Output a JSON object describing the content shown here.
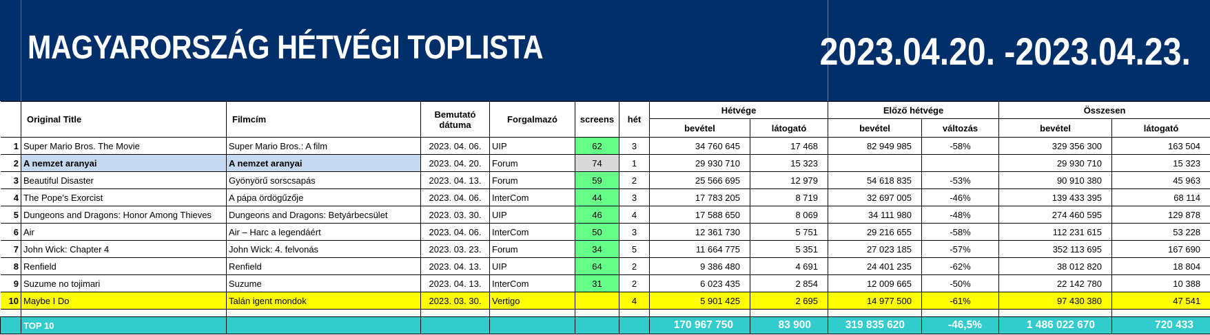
{
  "header": {
    "title": "MAGYARORSZÁG HÉTVÉGI TOPLISTA",
    "date_range": "2023.04.20. -2023.04.23."
  },
  "columns": {
    "original_title": "Original Title",
    "filmcim": "Filmcím",
    "bemutato_line1": "Bemutató",
    "bemutato_line2": "dátuma",
    "forgalmazo": "Forgalmazó",
    "screens": "screens",
    "het": "hét",
    "group_hetvege": "Hétvége",
    "group_elozo": "Előző hétvége",
    "group_osszesen": "Összesen",
    "bevetel": "bevétel",
    "latogato": "látogató",
    "valtozas": "változás"
  },
  "rows": [
    {
      "rank": "1",
      "original": "Super Mario Bros. The Movie",
      "hu": "Super Mario Bros.: A film",
      "date": "2023. 04. 06.",
      "dist": "UIP",
      "screens": "62",
      "week": "3",
      "wk_rev": "34 760 645",
      "wk_adm": "17 468",
      "prev_rev": "82 949 985",
      "change": "-58%",
      "tot_rev": "329 356 300",
      "tot_adm": "163 504"
    },
    {
      "rank": "2",
      "original": "A nemzet aranyai",
      "hu": "A nemzet aranyai",
      "date": "2023. 04. 20.",
      "dist": "Forum",
      "screens": "74",
      "week": "1",
      "wk_rev": "29 930 710",
      "wk_adm": "15 323",
      "prev_rev": "",
      "change": "",
      "tot_rev": "29 930 710",
      "tot_adm": "15 323"
    },
    {
      "rank": "3",
      "original": "Beautiful Disaster",
      "hu": "Gyönyörű sorscsapás",
      "date": "2023. 04. 13.",
      "dist": "Forum",
      "screens": "59",
      "week": "2",
      "wk_rev": "25 566 695",
      "wk_adm": "12 979",
      "prev_rev": "54 618 835",
      "change": "-53%",
      "tot_rev": "90 910 380",
      "tot_adm": "45 963"
    },
    {
      "rank": "4",
      "original": "The Pope's Exorcist",
      "hu": "A pápa ördögűzője",
      "date": "2023. 04. 06.",
      "dist": "InterCom",
      "screens": "44",
      "week": "3",
      "wk_rev": "17 783 205",
      "wk_adm": "8 719",
      "prev_rev": "32 697 005",
      "change": "-46%",
      "tot_rev": "139 433 395",
      "tot_adm": "68 114"
    },
    {
      "rank": "5",
      "original": "Dungeons and Dragons: Honor Among Thieves",
      "hu": "Dungeons and Dragons: Betyárbecsület",
      "date": "2023. 03. 30.",
      "dist": "UIP",
      "screens": "46",
      "week": "4",
      "wk_rev": "17 588 650",
      "wk_adm": "8 069",
      "prev_rev": "34 111 980",
      "change": "-48%",
      "tot_rev": "274 460 595",
      "tot_adm": "129 878"
    },
    {
      "rank": "6",
      "original": "Air",
      "hu": "Air – Harc a legendáért",
      "date": "2023. 04. 06.",
      "dist": "InterCom",
      "screens": "50",
      "week": "3",
      "wk_rev": "12 361 730",
      "wk_adm": "5 751",
      "prev_rev": "29 216 655",
      "change": "-58%",
      "tot_rev": "112 231 615",
      "tot_adm": "53 228"
    },
    {
      "rank": "7",
      "original": "John Wick: Chapter 4",
      "hu": "John Wick: 4. felvonás",
      "date": "2023. 03. 23.",
      "dist": "Forum",
      "screens": "34",
      "week": "5",
      "wk_rev": "11 664 775",
      "wk_adm": "5 351",
      "prev_rev": "27 023 185",
      "change": "-57%",
      "tot_rev": "352 113 695",
      "tot_adm": "167 690"
    },
    {
      "rank": "8",
      "original": "Renfield",
      "hu": "Renfield",
      "date": "2023. 04. 13.",
      "dist": "UIP",
      "screens": "64",
      "week": "2",
      "wk_rev": "9 386 480",
      "wk_adm": "4 691",
      "prev_rev": "24 401 235",
      "change": "-62%",
      "tot_rev": "38 012 820",
      "tot_adm": "18 804"
    },
    {
      "rank": "9",
      "original": "Suzume no tojimari",
      "hu": "Suzume",
      "date": "2023. 04. 13.",
      "dist": "InterCom",
      "screens": "31",
      "week": "2",
      "wk_rev": "6 023 435",
      "wk_adm": "2 854",
      "prev_rev": "12 009 665",
      "change": "-50%",
      "tot_rev": "22 142 780",
      "tot_adm": "10 388"
    },
    {
      "rank": "10",
      "original": "Maybe I Do",
      "hu": "Talán igent mondok",
      "date": "2023. 03. 30.",
      "dist": "Vertigo",
      "screens": "",
      "week": "4",
      "wk_rev": "5 901 425",
      "wk_adm": "2 695",
      "prev_rev": "14 977 500",
      "change": "-61%",
      "tot_rev": "97 430 380",
      "tot_adm": "47 541"
    }
  ],
  "total": {
    "label": "TOP 10",
    "wk_rev": "170 967 750",
    "wk_adm": "83 900",
    "prev_rev": "319 835 620",
    "change": "-46,5%",
    "tot_rev": "1 486 022 670",
    "tot_adm": "720 433"
  },
  "colors": {
    "header_bg": "#002f6a",
    "screens_green": "#66ff88",
    "screens_grey": "#d9d9d9",
    "row_blue": "#c5d9f1",
    "row_yellow": "#ffff00",
    "total_teal": "#33cccc"
  }
}
